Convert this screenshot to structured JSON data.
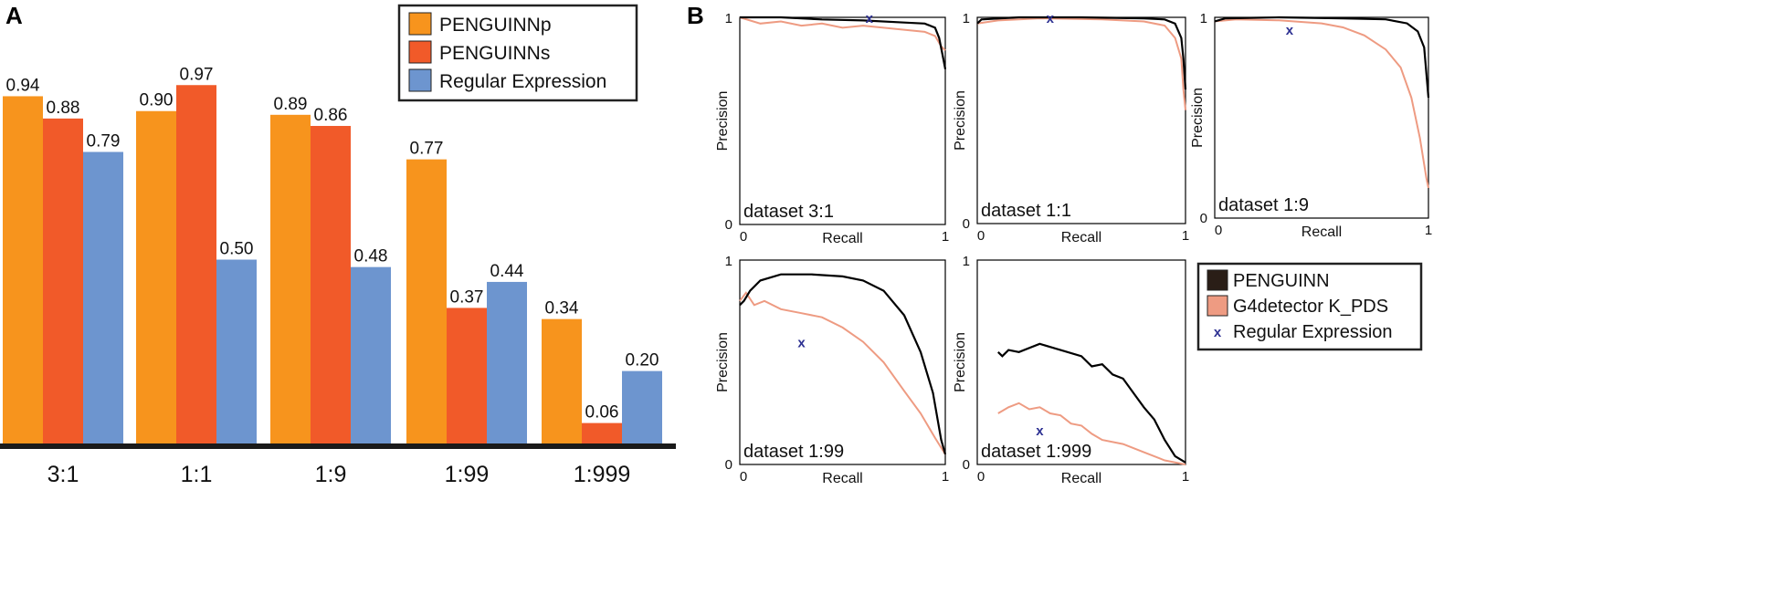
{
  "panels": {
    "a": "A",
    "b": "B"
  },
  "colors": {
    "penguinn_p": "#F7941D",
    "penguinn_s": "#F15A29",
    "regex_bar": "#6D95CF",
    "penguinn_curve": "#000000",
    "g4_curve": "#EE9B82",
    "regex_marker": "#2E3192",
    "legend_dark": "#2A1E17"
  },
  "chart_data": [
    {
      "type": "bar",
      "categories": [
        "3:1",
        "1:1",
        "1:9",
        "1:99",
        "1:999"
      ],
      "series": [
        {
          "name": "PENGUINNp",
          "values": [
            0.94,
            0.9,
            0.89,
            0.77,
            0.34
          ],
          "labels": [
            "0.94",
            "0.90",
            "0.89",
            "0.77",
            "0.34"
          ]
        },
        {
          "name": "PENGUINNs",
          "values": [
            0.88,
            0.97,
            0.86,
            0.37,
            0.06
          ],
          "labels": [
            "0.88",
            "0.97",
            "0.86",
            "0.37",
            "0.06"
          ]
        },
        {
          "name": "Regular Expression",
          "values": [
            0.79,
            0.5,
            0.48,
            0.44,
            0.2
          ],
          "labels": [
            "0.79",
            "0.50",
            "0.48",
            "0.44",
            "0.20"
          ]
        }
      ],
      "ylim": [
        0,
        1.15
      ],
      "legend": "top-right"
    },
    {
      "type": "line",
      "xlabel": "Recall",
      "ylabel": "Precision",
      "ticks": {
        "zero": "0",
        "one": "1"
      },
      "legend_entries": [
        "PENGUINN",
        "G4detector K_PDS",
        "Regular Expression"
      ],
      "regex_symbol": "x",
      "subplots": [
        {
          "title": "dataset 3:1",
          "penguinn": [
            [
              0,
              1.0
            ],
            [
              0.2,
              1.0
            ],
            [
              0.4,
              0.99
            ],
            [
              0.6,
              0.985
            ],
            [
              0.8,
              0.975
            ],
            [
              0.9,
              0.97
            ],
            [
              0.95,
              0.95
            ],
            [
              0.97,
              0.9
            ],
            [
              0.99,
              0.8
            ],
            [
              1,
              0.75
            ]
          ],
          "g4": [
            [
              0,
              1.0
            ],
            [
              0.1,
              0.97
            ],
            [
              0.2,
              0.98
            ],
            [
              0.3,
              0.96
            ],
            [
              0.4,
              0.97
            ],
            [
              0.5,
              0.95
            ],
            [
              0.6,
              0.96
            ],
            [
              0.7,
              0.95
            ],
            [
              0.8,
              0.94
            ],
            [
              0.9,
              0.93
            ],
            [
              0.95,
              0.91
            ],
            [
              0.98,
              0.86
            ],
            [
              1,
              0.84
            ]
          ],
          "regex": [
            0.63,
            1.0
          ]
        },
        {
          "title": "dataset 1:1",
          "penguinn": [
            [
              0,
              0.97
            ],
            [
              0.02,
              0.99
            ],
            [
              0.2,
              1.0
            ],
            [
              0.5,
              1.0
            ],
            [
              0.8,
              0.995
            ],
            [
              0.9,
              0.99
            ],
            [
              0.95,
              0.97
            ],
            [
              0.98,
              0.9
            ],
            [
              0.99,
              0.8
            ],
            [
              1,
              0.65
            ]
          ],
          "g4": [
            [
              0,
              0.97
            ],
            [
              0.1,
              0.985
            ],
            [
              0.3,
              0.995
            ],
            [
              0.6,
              0.99
            ],
            [
              0.8,
              0.98
            ],
            [
              0.9,
              0.96
            ],
            [
              0.95,
              0.9
            ],
            [
              0.98,
              0.8
            ],
            [
              0.99,
              0.65
            ],
            [
              1,
              0.55
            ]
          ],
          "regex": [
            0.35,
            1.0
          ]
        },
        {
          "title": "dataset 1:9",
          "penguinn": [
            [
              0,
              0.98
            ],
            [
              0.05,
              0.995
            ],
            [
              0.3,
              1.0
            ],
            [
              0.6,
              0.995
            ],
            [
              0.8,
              0.99
            ],
            [
              0.9,
              0.97
            ],
            [
              0.95,
              0.93
            ],
            [
              0.98,
              0.85
            ],
            [
              1,
              0.6
            ]
          ],
          "g4": [
            [
              0,
              0.98
            ],
            [
              0.1,
              0.99
            ],
            [
              0.3,
              0.985
            ],
            [
              0.5,
              0.97
            ],
            [
              0.6,
              0.95
            ],
            [
              0.7,
              0.91
            ],
            [
              0.8,
              0.84
            ],
            [
              0.87,
              0.75
            ],
            [
              0.92,
              0.6
            ],
            [
              0.96,
              0.4
            ],
            [
              0.99,
              0.2
            ],
            [
              1,
              0.15
            ]
          ],
          "regex": [
            0.35,
            0.94
          ]
        },
        {
          "title": "dataset 1:99",
          "penguinn": [
            [
              0,
              0.78
            ],
            [
              0.02,
              0.8
            ],
            [
              0.05,
              0.85
            ],
            [
              0.1,
              0.9
            ],
            [
              0.2,
              0.93
            ],
            [
              0.35,
              0.93
            ],
            [
              0.5,
              0.92
            ],
            [
              0.6,
              0.9
            ],
            [
              0.7,
              0.85
            ],
            [
              0.8,
              0.73
            ],
            [
              0.88,
              0.55
            ],
            [
              0.94,
              0.35
            ],
            [
              0.98,
              0.12
            ],
            [
              1,
              0.05
            ]
          ],
          "g4": [
            [
              0,
              0.8
            ],
            [
              0.03,
              0.84
            ],
            [
              0.07,
              0.78
            ],
            [
              0.12,
              0.8
            ],
            [
              0.2,
              0.76
            ],
            [
              0.3,
              0.74
            ],
            [
              0.4,
              0.72
            ],
            [
              0.5,
              0.67
            ],
            [
              0.6,
              0.6
            ],
            [
              0.7,
              0.5
            ],
            [
              0.8,
              0.36
            ],
            [
              0.88,
              0.25
            ],
            [
              0.95,
              0.13
            ],
            [
              1,
              0.05
            ]
          ],
          "regex": [
            0.3,
            0.6
          ]
        },
        {
          "title": "dataset 1:999",
          "penguinn": [
            [
              0.1,
              0.55
            ],
            [
              0.12,
              0.53
            ],
            [
              0.15,
              0.56
            ],
            [
              0.2,
              0.55
            ],
            [
              0.3,
              0.59
            ],
            [
              0.4,
              0.56
            ],
            [
              0.5,
              0.53
            ],
            [
              0.55,
              0.48
            ],
            [
              0.6,
              0.49
            ],
            [
              0.65,
              0.44
            ],
            [
              0.7,
              0.42
            ],
            [
              0.75,
              0.35
            ],
            [
              0.8,
              0.28
            ],
            [
              0.85,
              0.22
            ],
            [
              0.9,
              0.12
            ],
            [
              0.95,
              0.04
            ],
            [
              1,
              0.01
            ]
          ],
          "g4": [
            [
              0.1,
              0.25
            ],
            [
              0.15,
              0.28
            ],
            [
              0.2,
              0.3
            ],
            [
              0.25,
              0.27
            ],
            [
              0.3,
              0.28
            ],
            [
              0.35,
              0.25
            ],
            [
              0.4,
              0.24
            ],
            [
              0.45,
              0.2
            ],
            [
              0.5,
              0.19
            ],
            [
              0.55,
              0.15
            ],
            [
              0.6,
              0.12
            ],
            [
              0.7,
              0.1
            ],
            [
              0.8,
              0.06
            ],
            [
              0.9,
              0.02
            ],
            [
              1,
              0.0
            ]
          ],
          "regex": [
            0.3,
            0.17
          ]
        }
      ]
    }
  ]
}
